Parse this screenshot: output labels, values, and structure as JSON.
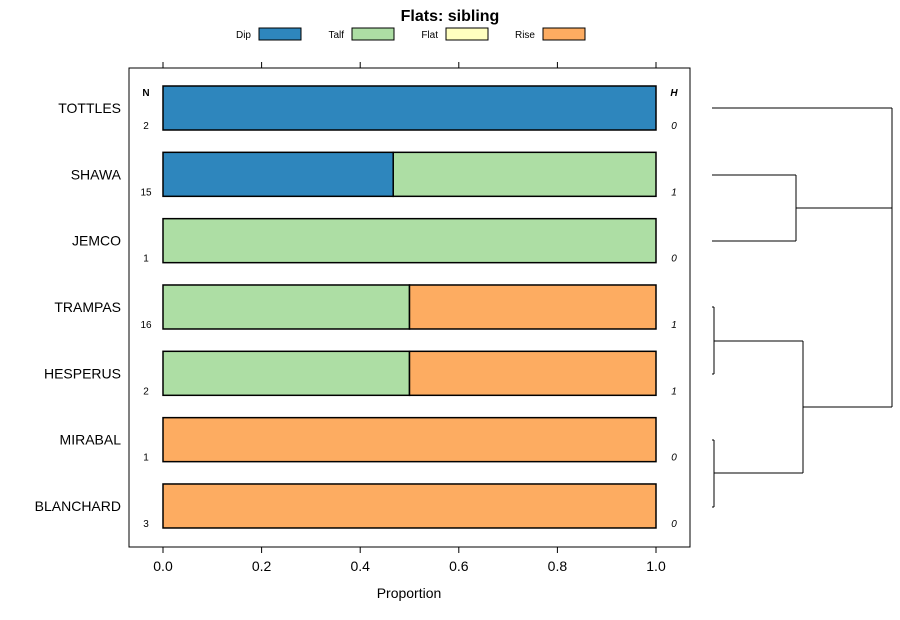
{
  "chart_data": {
    "type": "bar",
    "orientation": "horizontal",
    "stacked": true,
    "title": "Flats: sibling",
    "xlabel": "Proportion",
    "ylabel": "",
    "xlim": [
      -0.07,
      1.07
    ],
    "x_ticks": [
      "0.0",
      "0.2",
      "0.4",
      "0.6",
      "0.8",
      "1.0"
    ],
    "x_tick_values": [
      0,
      0.2,
      0.4,
      0.6,
      0.8,
      1.0
    ],
    "legend_position": "top",
    "n_header": "N",
    "h_header": "H",
    "categories": [
      "TOTTLES",
      "SHAWA",
      "JEMCO",
      "TRAMPAS",
      "HESPERUS",
      "MIRABAL",
      "BLANCHARD"
    ],
    "n_values": [
      "2",
      "15",
      "1",
      "16",
      "2",
      "1",
      "3"
    ],
    "h_values": [
      "0",
      "1",
      "0",
      "1",
      "1",
      "0",
      "0"
    ],
    "series": [
      {
        "name": "Dip",
        "color": "#2e86bd",
        "values": [
          1.0,
          0.467,
          0,
          0,
          0,
          0,
          0
        ]
      },
      {
        "name": "Talf",
        "color": "#addea4",
        "values": [
          0,
          0.533,
          1.0,
          0.5,
          0.5,
          0,
          0
        ]
      },
      {
        "name": "Flat",
        "color": "#ffffc0",
        "values": [
          0,
          0,
          0,
          0,
          0,
          0,
          0
        ]
      },
      {
        "name": "Rise",
        "color": "#fdac61",
        "values": [
          0,
          0,
          0,
          0.5,
          0.5,
          1.0,
          1.0
        ]
      }
    ],
    "dendrogram": {
      "linkage": "hierarchical clustering of rows",
      "merges": [
        {
          "a": "TOTTLES",
          "b": "JEMCO / SHAWA cluster",
          "height": 1.0
        },
        {
          "a": "SHAWA",
          "b": "JEMCO",
          "height": 0.45
        },
        {
          "a": "TRAMPAS",
          "b": "HESPERUS",
          "height": 0.0
        },
        {
          "a": "MIRABAL",
          "b": "BLANCHARD",
          "height": 0.0
        },
        {
          "a": "TRAMPAS/HESPERUS",
          "b": "MIRABAL/BLANCHARD",
          "height": 0.5
        }
      ]
    }
  }
}
